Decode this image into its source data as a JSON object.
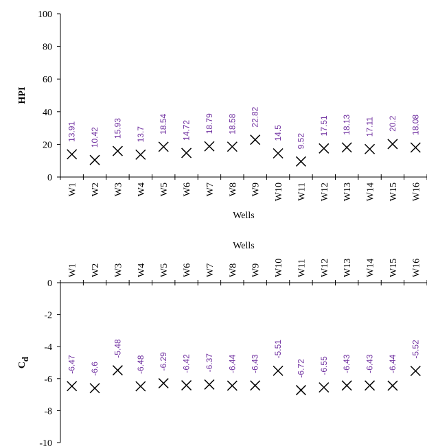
{
  "chart_data": [
    {
      "type": "scatter",
      "xlabel": "Wells",
      "ylabel": "HPI",
      "categories": [
        "W1",
        "W2",
        "W3",
        "W4",
        "W5",
        "W6",
        "W7",
        "W8",
        "W9",
        "W10",
        "W11",
        "W12",
        "W13",
        "W14",
        "W15",
        "W16"
      ],
      "values": [
        13.91,
        10.42,
        15.93,
        13.7,
        18.54,
        14.72,
        18.79,
        18.58,
        22.82,
        14.5,
        9.52,
        17.51,
        18.13,
        17.11,
        20.2,
        18.08
      ],
      "color": "#000000",
      "label_color": "#7030a0",
      "ylim": [
        0,
        100
      ],
      "yticks": [
        0,
        20,
        40,
        60,
        80,
        100
      ],
      "x_axis_position": "bottom"
    },
    {
      "type": "scatter",
      "xlabel": "Wells",
      "ylabel": "C",
      "ylabel_subscript": "d",
      "categories": [
        "W1",
        "W2",
        "W3",
        "W4",
        "W5",
        "W6",
        "W7",
        "W8",
        "W9",
        "W10",
        "W11",
        "W12",
        "W13",
        "W14",
        "W15",
        "W16"
      ],
      "values": [
        -6.47,
        -6.6,
        -5.48,
        -6.48,
        -6.29,
        -6.42,
        -6.37,
        -6.44,
        -6.43,
        -5.51,
        -6.72,
        -6.55,
        -6.43,
        -6.43,
        -6.44,
        -5.52
      ],
      "color": "#000000",
      "label_color": "#7030a0",
      "ylim": [
        -10,
        0
      ],
      "yticks": [
        0,
        -2,
        -4,
        -6,
        -8,
        -10
      ],
      "x_axis_position": "top"
    }
  ]
}
